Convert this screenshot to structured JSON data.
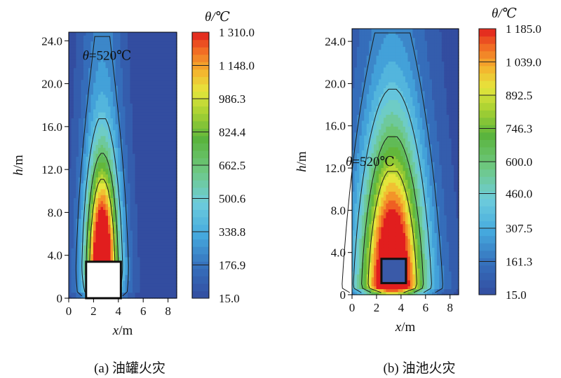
{
  "chart_data": [
    {
      "type": "heatmap",
      "panel": "a",
      "caption": "(a) 油罐火灾",
      "xlabel_var": "x",
      "xlabel_unit": "/m",
      "ylabel_var": "h",
      "ylabel_unit": "/m",
      "xlim": [
        0,
        8.7
      ],
      "ylim": [
        0,
        24.8
      ],
      "xticks": [
        "0",
        "2",
        "4",
        "6",
        "8"
      ],
      "xtick_values": [
        0,
        2,
        4,
        6,
        8
      ],
      "yticks": [
        "0",
        "4.0",
        "8.0",
        "12.0",
        "16.0",
        "20.0",
        "24.0"
      ],
      "ytick_values": [
        0,
        4,
        8,
        12,
        16,
        20,
        24
      ],
      "annotation": "θ=520℃",
      "annotation_at": {
        "x": 2.8,
        "y": 22.6
      },
      "colorbar": {
        "title": "θ/℃",
        "min": 15.0,
        "max": 1310.0,
        "labels": [
          "1 310.0",
          "1 148.0",
          "986.3",
          "824.4",
          "662.5",
          "500.6",
          "338.8",
          "176.9",
          "15.0"
        ],
        "values": [
          1310.0,
          1148.0,
          986.3,
          824.4,
          662.5,
          500.6,
          338.8,
          176.9,
          15.0
        ]
      },
      "source": {
        "x": 2.7,
        "w_near": 1.25,
        "w_far": 1.05,
        "h_peak": 3.2,
        "h_len": 12.0,
        "peak": 1310.0,
        "ambient": 15.0,
        "tank": [
          1.4,
          4.2,
          0,
          3.4
        ]
      }
    },
    {
      "type": "heatmap",
      "panel": "b",
      "caption": "(b) 油池火灾",
      "xlabel_var": "x",
      "xlabel_unit": "/m",
      "ylabel_var": "h",
      "ylabel_unit": "/m",
      "xlim": [
        0,
        8.7
      ],
      "ylim": [
        0,
        25.2
      ],
      "xticks": [
        "0",
        "2",
        "4",
        "6",
        "8"
      ],
      "xtick_values": [
        0,
        2,
        4,
        6,
        8
      ],
      "yticks": [
        "0",
        "4.0",
        "8.0",
        "12.0",
        "16.0",
        "20.0",
        "24.0"
      ],
      "ytick_values": [
        0,
        4,
        8,
        12,
        16,
        20,
        24
      ],
      "annotation": "θ=520℃",
      "annotation_at": {
        "x": 1.2,
        "y": 12.6
      },
      "colorbar": {
        "title": "θ/℃",
        "min": 15.0,
        "max": 1185.0,
        "labels": [
          "1 185.0",
          "1 039.0",
          "892.5",
          "746.3",
          "600.0",
          "460.0",
          "307.5",
          "161.3",
          "15.0"
        ],
        "values": [
          1185.0,
          1039.0,
          892.5,
          746.3,
          600.0,
          460.0,
          307.5,
          161.3,
          15.0
        ]
      },
      "source": {
        "x": 3.3,
        "w_near": 2.4,
        "w_far": 2.0,
        "h_peak": 1.0,
        "h_len": 17.0,
        "peak": 1185.0,
        "ambient": 15.0,
        "tank": [
          2.4,
          4.4,
          1.1,
          3.4
        ]
      }
    }
  ]
}
